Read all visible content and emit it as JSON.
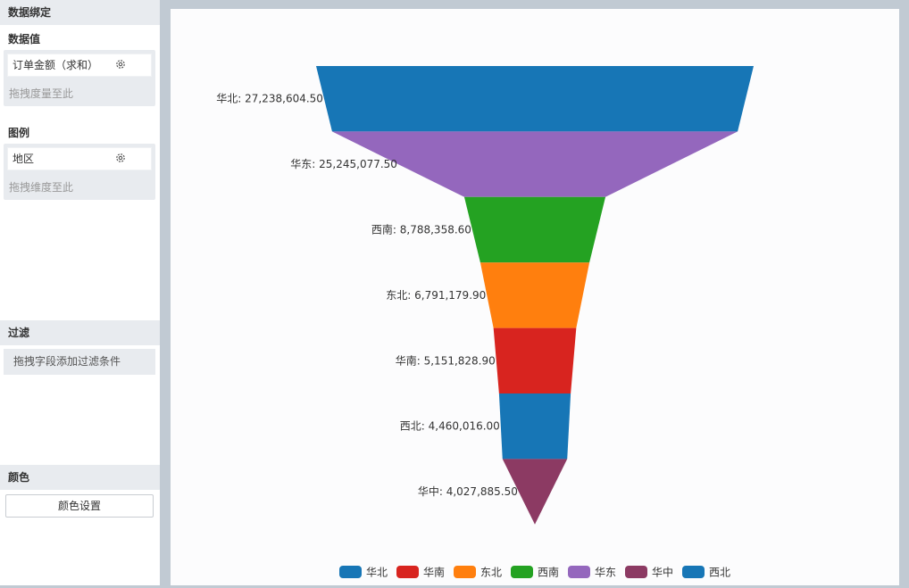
{
  "sidebar": {
    "binding_title": "数据绑定",
    "data_value_title": "数据值",
    "data_value_field": "订单金额（求和）",
    "data_value_hint": "拖拽度量至此",
    "legend_title": "图例",
    "legend_field": "地区",
    "legend_hint": "拖拽维度至此",
    "filter_title": "过滤",
    "filter_hint": "拖拽字段添加过滤条件",
    "color_title": "颜色",
    "color_button": "颜色设置"
  },
  "chart_data": {
    "type": "funnel",
    "categories": [
      "华北",
      "华东",
      "西南",
      "东北",
      "华南",
      "西北",
      "华中"
    ],
    "values": [
      27238604.5,
      25245077.5,
      8788358.6,
      6791179.9,
      5151828.9,
      4460016.0,
      4027885.5
    ],
    "labels": [
      "华北: 27,238,604.50",
      "华东: 25,245,077.50",
      "西南: 8,788,358.60",
      "东北: 6,791,179.90",
      "华南: 5,151,828.90",
      "西北: 4,460,016.00",
      "华中: 4,027,885.50"
    ],
    "colors": [
      "#1776b6",
      "#9467bd",
      "#24a222",
      "#ff7f0e",
      "#d8241f",
      "#1776b6",
      "#8c3a63"
    ],
    "legend": [
      {
        "name": "华北",
        "color": "#1776b6"
      },
      {
        "name": "华南",
        "color": "#d8241f"
      },
      {
        "name": "东北",
        "color": "#ff7f0e"
      },
      {
        "name": "西南",
        "color": "#24a222"
      },
      {
        "name": "华东",
        "color": "#9467bd"
      },
      {
        "name": "华中",
        "color": "#8c3a63"
      },
      {
        "name": "西北",
        "color": "#1776b6"
      }
    ],
    "legend_position": "bottom-center"
  }
}
